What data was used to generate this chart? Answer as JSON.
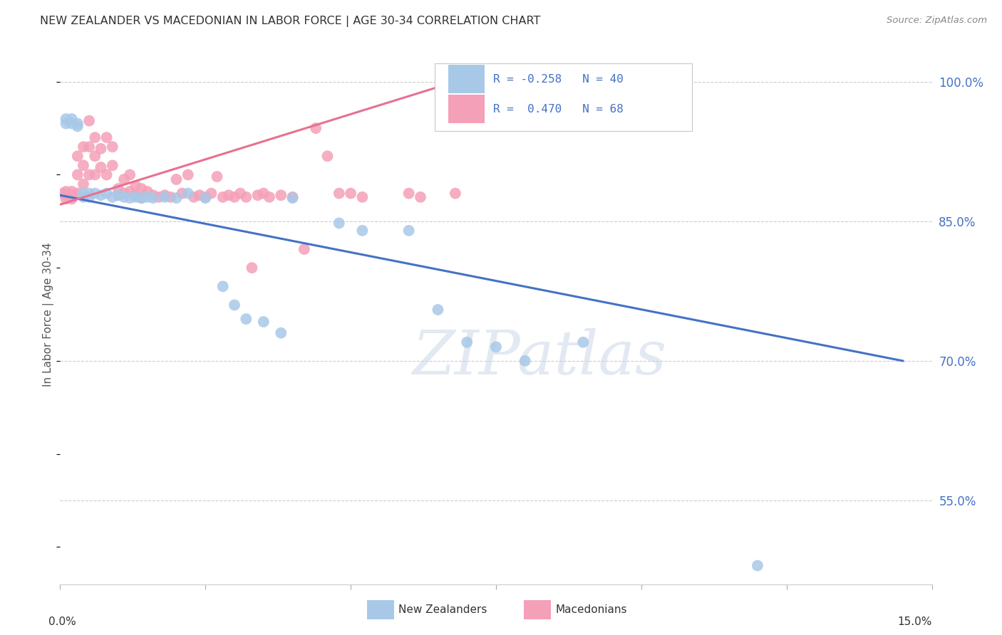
{
  "title": "NEW ZEALANDER VS MACEDONIAN IN LABOR FORCE | AGE 30-34 CORRELATION CHART",
  "source": "Source: ZipAtlas.com",
  "ylabel": "In Labor Force | Age 30-34",
  "xlim": [
    0.0,
    0.15
  ],
  "ylim": [
    0.46,
    1.04
  ],
  "color_nz": "#a8c8e8",
  "color_mac": "#f4a0b8",
  "color_nz_line": "#4472C4",
  "color_mac_line": "#e87090",
  "color_text_blue": "#4472C4",
  "watermark": "ZIPatlas",
  "ytick_vals": [
    0.55,
    0.7,
    0.85,
    1.0
  ],
  "ytick_labels": [
    "55.0%",
    "70.0%",
    "85.0%",
    "100.0%"
  ],
  "nz_x": [
    0.001,
    0.001,
    0.002,
    0.002,
    0.003,
    0.003,
    0.004,
    0.004,
    0.005,
    0.005,
    0.006,
    0.007,
    0.008,
    0.009,
    0.01,
    0.011,
    0.012,
    0.013,
    0.014,
    0.015,
    0.016,
    0.018,
    0.02,
    0.022,
    0.025,
    0.028,
    0.03,
    0.032,
    0.035,
    0.038,
    0.04,
    0.048,
    0.052,
    0.06,
    0.065,
    0.07,
    0.075,
    0.08,
    0.09,
    0.12
  ],
  "nz_y": [
    0.96,
    0.955,
    0.96,
    0.955,
    0.955,
    0.952,
    0.88,
    0.876,
    0.88,
    0.876,
    0.88,
    0.878,
    0.88,
    0.876,
    0.878,
    0.876,
    0.875,
    0.876,
    0.875,
    0.876,
    0.875,
    0.876,
    0.875,
    0.88,
    0.875,
    0.78,
    0.76,
    0.745,
    0.742,
    0.73,
    0.875,
    0.848,
    0.84,
    0.84,
    0.755,
    0.72,
    0.715,
    0.7,
    0.72,
    0.48
  ],
  "mac_x": [
    0.0005,
    0.001,
    0.001,
    0.001,
    0.002,
    0.002,
    0.002,
    0.003,
    0.003,
    0.003,
    0.004,
    0.004,
    0.004,
    0.005,
    0.005,
    0.005,
    0.006,
    0.006,
    0.006,
    0.007,
    0.007,
    0.008,
    0.008,
    0.009,
    0.009,
    0.01,
    0.01,
    0.011,
    0.011,
    0.012,
    0.012,
    0.013,
    0.013,
    0.014,
    0.014,
    0.015,
    0.016,
    0.017,
    0.018,
    0.019,
    0.02,
    0.021,
    0.022,
    0.023,
    0.024,
    0.025,
    0.026,
    0.027,
    0.028,
    0.029,
    0.03,
    0.031,
    0.032,
    0.033,
    0.034,
    0.035,
    0.036,
    0.038,
    0.04,
    0.042,
    0.044,
    0.046,
    0.048,
    0.05,
    0.052,
    0.06,
    0.062,
    0.068
  ],
  "mac_y": [
    0.88,
    0.882,
    0.878,
    0.874,
    0.882,
    0.878,
    0.874,
    0.92,
    0.9,
    0.88,
    0.93,
    0.91,
    0.89,
    0.958,
    0.93,
    0.9,
    0.94,
    0.92,
    0.9,
    0.928,
    0.908,
    0.94,
    0.9,
    0.93,
    0.91,
    0.885,
    0.878,
    0.895,
    0.88,
    0.9,
    0.882,
    0.888,
    0.878,
    0.885,
    0.875,
    0.882,
    0.878,
    0.876,
    0.878,
    0.876,
    0.895,
    0.88,
    0.9,
    0.876,
    0.878,
    0.876,
    0.88,
    0.898,
    0.876,
    0.878,
    0.876,
    0.88,
    0.876,
    0.8,
    0.878,
    0.88,
    0.876,
    0.878,
    0.876,
    0.82,
    0.95,
    0.92,
    0.88,
    0.88,
    0.876,
    0.88,
    0.876,
    0.88
  ],
  "nz_line_x": [
    0.0,
    0.145
  ],
  "nz_line_y": [
    0.878,
    0.7
  ],
  "mac_line_x": [
    0.0,
    0.068
  ],
  "mac_line_y": [
    0.868,
    1.0
  ]
}
